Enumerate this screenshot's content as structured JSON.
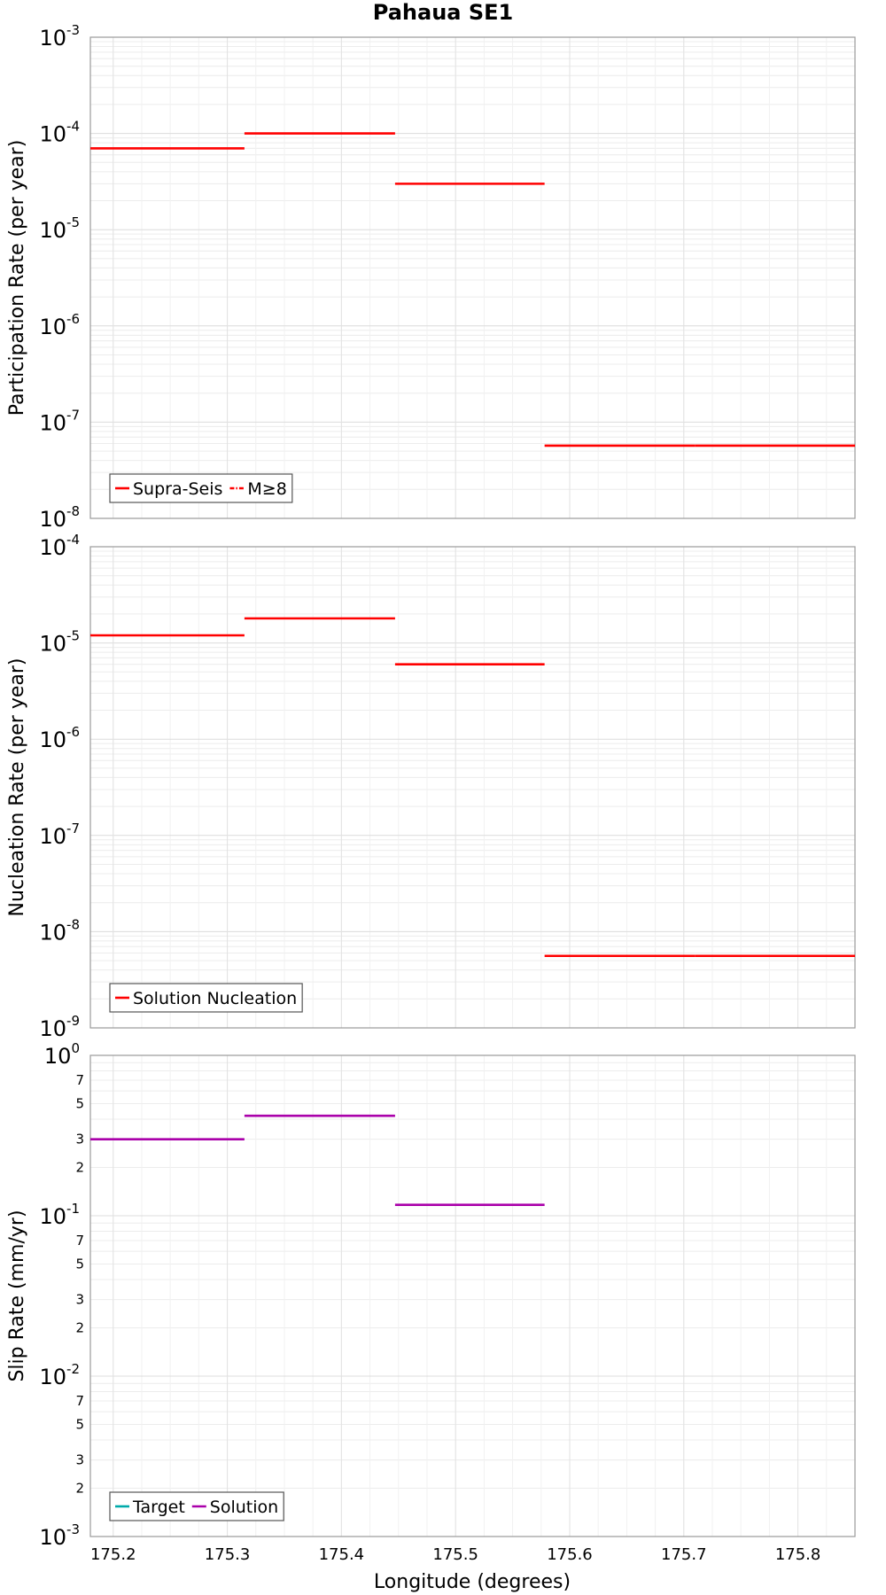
{
  "chart_data": {
    "title": "Pahaua SE1",
    "xlabel": "Longitude (degrees)",
    "xlim": [
      175.18,
      175.85
    ],
    "x_ticks": [
      "175.2",
      "175.3",
      "175.4",
      "175.5",
      "175.6",
      "175.7",
      "175.8"
    ],
    "x_tick_values": [
      175.2,
      175.3,
      175.4,
      175.5,
      175.6,
      175.7,
      175.8
    ],
    "grid": true,
    "panels": [
      {
        "type": "line",
        "ylabel": "Participation Rate (per year)",
        "yscale": "log",
        "ylim_exp": [
          -8,
          -3
        ],
        "major_ticks": [
          {
            "base": "10",
            "exp": "-3"
          },
          {
            "base": "10",
            "exp": "-4"
          },
          {
            "base": "10",
            "exp": "-5"
          },
          {
            "base": "10",
            "exp": "-6"
          },
          {
            "base": "10",
            "exp": "-7"
          },
          {
            "base": "10",
            "exp": "-8"
          }
        ],
        "minor_tick_labels": [],
        "series": [
          {
            "name": "Supra-Seis",
            "color": "#ff0000",
            "segments": [
              {
                "x0": 175.18,
                "x1": 175.315,
                "y": 7e-05
              },
              {
                "x0": 175.315,
                "x1": 175.447,
                "y": 0.0001
              },
              {
                "x0": 175.447,
                "x1": 175.578,
                "y": 3e-05
              },
              {
                "x0": 175.578,
                "x1": 175.71,
                "y": 5.7e-08
              },
              {
                "x0": 175.71,
                "x1": 175.85,
                "y": 5.7e-08
              }
            ]
          }
        ],
        "legend": [
          {
            "label": "Supra-Seis",
            "color": "#ff0000",
            "style": "solid"
          },
          {
            "label": "M≥8",
            "color": "#ff0000",
            "style": "dashdot"
          }
        ],
        "legend_position": "bottom-left"
      },
      {
        "type": "line",
        "ylabel": "Nucleation Rate (per year)",
        "yscale": "log",
        "ylim_exp": [
          -9,
          -4
        ],
        "major_ticks": [
          {
            "base": "10",
            "exp": "-4"
          },
          {
            "base": "10",
            "exp": "-5"
          },
          {
            "base": "10",
            "exp": "-6"
          },
          {
            "base": "10",
            "exp": "-7"
          },
          {
            "base": "10",
            "exp": "-8"
          },
          {
            "base": "10",
            "exp": "-9"
          }
        ],
        "minor_tick_labels": [],
        "series": [
          {
            "name": "Solution Nucleation",
            "color": "#ff0000",
            "segments": [
              {
                "x0": 175.18,
                "x1": 175.315,
                "y": 1.2e-05
              },
              {
                "x0": 175.315,
                "x1": 175.447,
                "y": 1.8e-05
              },
              {
                "x0": 175.447,
                "x1": 175.578,
                "y": 6e-06
              },
              {
                "x0": 175.578,
                "x1": 175.71,
                "y": 5.6e-09
              },
              {
                "x0": 175.71,
                "x1": 175.85,
                "y": 5.6e-09
              }
            ]
          }
        ],
        "legend": [
          {
            "label": "Solution Nucleation",
            "color": "#ff0000",
            "style": "solid"
          }
        ],
        "legend_position": "bottom-left"
      },
      {
        "type": "line",
        "ylabel": "Slip Rate (mm/yr)",
        "yscale": "log",
        "ylim_exp": [
          -3,
          0
        ],
        "major_ticks": [
          {
            "base": "10",
            "exp": "0"
          },
          {
            "base": "10",
            "exp": "-1"
          },
          {
            "base": "10",
            "exp": "-2"
          },
          {
            "base": "10",
            "exp": "-3"
          }
        ],
        "minor_tick_labels": [
          "2",
          "3",
          "5",
          "7"
        ],
        "series": [
          {
            "name": "Solution",
            "color": "#aa00aa",
            "segments": [
              {
                "x0": 175.18,
                "x1": 175.315,
                "y": 0.3
              },
              {
                "x0": 175.315,
                "x1": 175.447,
                "y": 0.42
              },
              {
                "x0": 175.447,
                "x1": 175.578,
                "y": 0.117
              }
            ]
          }
        ],
        "legend": [
          {
            "label": "Target",
            "color": "#00aaaa",
            "style": "solid"
          },
          {
            "label": "Solution",
            "color": "#aa00aa",
            "style": "solid"
          }
        ],
        "legend_position": "bottom-left"
      }
    ]
  }
}
